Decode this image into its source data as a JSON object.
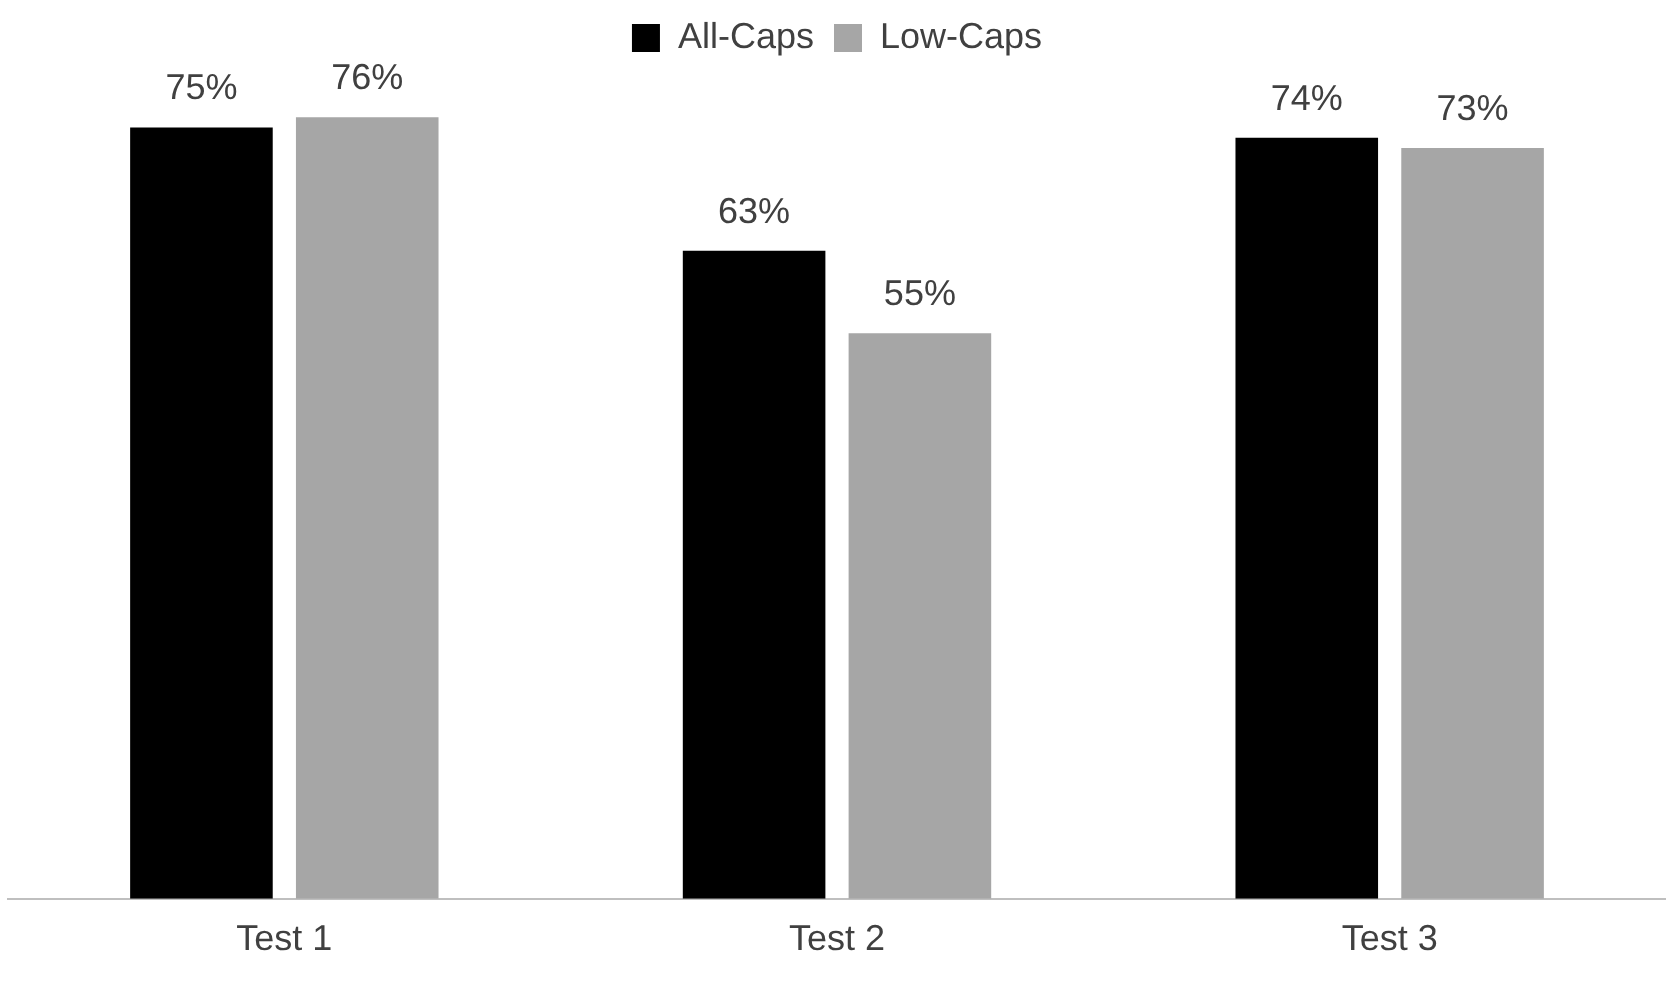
{
  "chart_data": {
    "type": "bar",
    "categories": [
      "Test 1",
      "Test 2",
      "Test 3"
    ],
    "series": [
      {
        "name": "All-Caps",
        "color": "#000000",
        "values": [
          75,
          63,
          74
        ],
        "value_labels": [
          "75%",
          "63%",
          "74%"
        ]
      },
      {
        "name": "Low-Caps",
        "color": "#a6a6a6",
        "values": [
          76,
          55,
          73
        ],
        "value_labels": [
          "76%",
          "55%",
          "73%"
        ]
      }
    ],
    "legend": "top",
    "grid": false
  }
}
